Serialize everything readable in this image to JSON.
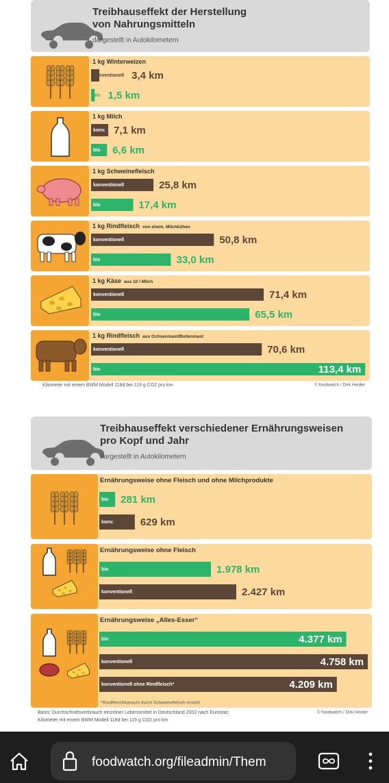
{
  "chart_data": [
    {
      "type": "bar",
      "title": [
        "Treibhauseffekt der Herstellung",
        "von Nahrungsmitteln"
      ],
      "subtitle": "dargestellt in Autokilometern",
      "panels": [
        {
          "label": "1 kg Winterweizen",
          "bars": [
            {
              "label": "konventionell",
              "value": 3.4,
              "value_label": "3,4 km",
              "color": "#5b4638"
            },
            {
              "label": "bio",
              "value": 1.5,
              "value_label": "1,5 km",
              "color": "#2db46b"
            }
          ]
        },
        {
          "label": "1 kg Milch",
          "bars": [
            {
              "label": "konv.",
              "value": 7.1,
              "value_label": "7,1 km",
              "color": "#5b4638"
            },
            {
              "label": "bio",
              "value": 6.6,
              "value_label": "6,6 km",
              "color": "#2db46b"
            }
          ]
        },
        {
          "label": "1 kg Schweinefleisch",
          "bars": [
            {
              "label": "konventionell",
              "value": 25.8,
              "value_label": "25,8 km",
              "color": "#5b4638"
            },
            {
              "label": "bio",
              "value": 17.4,
              "value_label": "17,4 km",
              "color": "#2db46b"
            }
          ]
        },
        {
          "label": "1 kg Rindfleisch",
          "sublabel": "von ehem. Milchkühen",
          "bars": [
            {
              "label": "konventionell",
              "value": 50.8,
              "value_label": "50,8 km",
              "color": "#5b4638"
            },
            {
              "label": "bio",
              "value": 33.0,
              "value_label": "33,0 km",
              "color": "#2db46b"
            }
          ]
        },
        {
          "label": "1 kg Käse",
          "sublabel": "aus 10 l Milch",
          "bars": [
            {
              "label": "konventionell",
              "value": 71.4,
              "value_label": "71,4 km",
              "color": "#5b4638"
            },
            {
              "label": "bio",
              "value": 65.5,
              "value_label": "65,5 km",
              "color": "#2db46b"
            }
          ]
        },
        {
          "label": "1 kg Rindfleisch",
          "sublabel": "aus Ochsenmast/Bullenmast",
          "bars": [
            {
              "label": "konventionell",
              "value": 70.6,
              "value_label": "70,6 km",
              "color": "#5b4638"
            },
            {
              "label": "bio",
              "value": 113.4,
              "value_label": "113,4 km",
              "color": "#2db46b"
            }
          ]
        }
      ],
      "footnote": [
        "Kilometer mit einem BWM Modell 118d bei 119 g CO2 pro km"
      ],
      "credit": "© foodwatch / Dirk Heider"
    },
    {
      "type": "bar",
      "title": [
        "Treibhauseffekt verschiedener Ernährungsweisen",
        "pro Kopf und Jahr"
      ],
      "subtitle": "dargestellt in Autokilometern",
      "panels": [
        {
          "label": "Ernährungsweise ohne Fleisch und ohne Milchprodukte",
          "bars": [
            {
              "label": "bio",
              "value": 281,
              "value_label": "281 km",
              "color": "#2db46b"
            },
            {
              "label": "konv.",
              "value": 629,
              "value_label": "629 km",
              "color": "#5b4638"
            }
          ]
        },
        {
          "label": "Ernährungsweise ohne Fleisch",
          "bars": [
            {
              "label": "bio",
              "value": 1978,
              "value_label": "1.978 km",
              "color": "#2db46b"
            },
            {
              "label": "konventionell",
              "value": 2427,
              "value_label": "2.427 km",
              "color": "#5b4638"
            }
          ]
        },
        {
          "label": "Ernährungsweise „Alles-Esser“",
          "bars": [
            {
              "label": "bio",
              "value": 4377,
              "value_label": "4.377 km",
              "color": "#2db46b"
            },
            {
              "label": "konventionell",
              "value": 4758,
              "value_label": "4.758 km",
              "color": "#5b4638"
            },
            {
              "label": "konventionell ohne Rindfleisch*",
              "value": 4209,
              "value_label": "4.209 km",
              "color": "#5b4638"
            }
          ],
          "note": "*Rindfleischkonsum durch Schweinefleisch ersetzt"
        }
      ],
      "footnote": [
        "Basis: Durchschnittsverbrauch einzelner Lebensmittel in Deutschland 2002 nach Eurostat;",
        "Kilometer mit einem BWM Modell 118d bei 119 g CO2 pro km"
      ],
      "credit": "© foodwatch / Dirk Heider"
    }
  ],
  "browser": {
    "url": "foodwatch.org/fileadmin/Them"
  }
}
